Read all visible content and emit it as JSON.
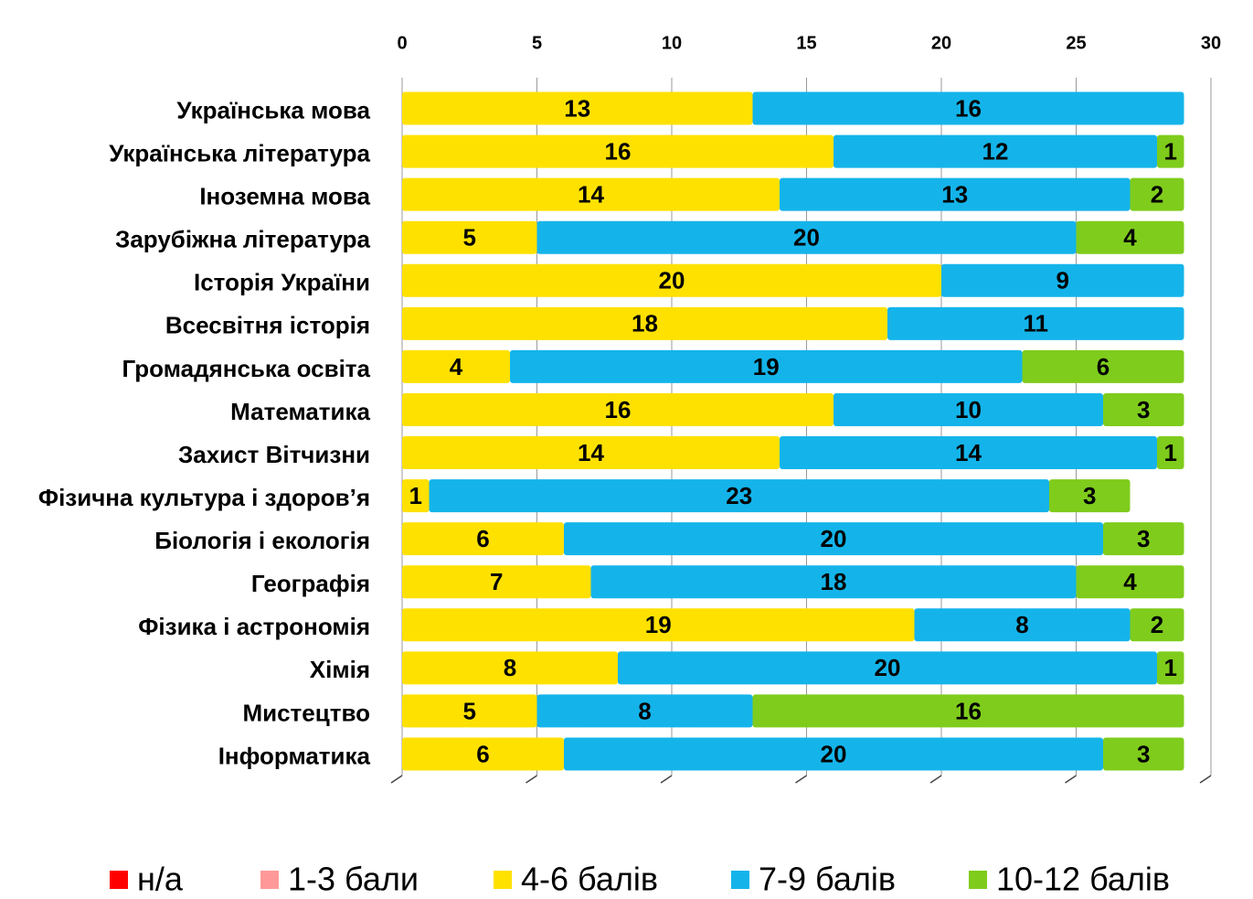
{
  "chart_data": {
    "type": "stacked_bar",
    "orientation": "horizontal",
    "categories": [
      "Українська мова",
      "Українська література",
      "Іноземна мова",
      "Зарубіжна література",
      "Історія України",
      "Всесвітня історія",
      "Громадянська освіта",
      "Математика",
      "Захист Вітчизни",
      "Фізична культура і здоров’я",
      "Біологія і екологія",
      "Географія",
      "Фізика і астрономія",
      "Хімія",
      "Мистецтво",
      "Інформатика"
    ],
    "series": [
      {
        "name": "н/а",
        "color": "#ff0000",
        "values": [
          null,
          null,
          null,
          null,
          null,
          null,
          null,
          null,
          null,
          null,
          null,
          null,
          null,
          null,
          null,
          null
        ]
      },
      {
        "name": "1-3 бали",
        "color": "#ff9999",
        "values": [
          null,
          null,
          null,
          null,
          null,
          null,
          null,
          null,
          null,
          null,
          null,
          null,
          null,
          null,
          null,
          null
        ]
      },
      {
        "name": "4-6 балів",
        "color": "#ffe100",
        "values": [
          13,
          16,
          14,
          5,
          20,
          18,
          4,
          16,
          14,
          1,
          6,
          7,
          19,
          8,
          5,
          6
        ]
      },
      {
        "name": "7-9 балів",
        "color": "#14b4ea",
        "values": [
          16,
          12,
          13,
          20,
          9,
          11,
          19,
          10,
          14,
          23,
          20,
          18,
          8,
          20,
          8,
          20
        ]
      },
      {
        "name": "10-12 балів",
        "color": "#7fcc1c",
        "values": [
          null,
          1,
          2,
          4,
          null,
          null,
          6,
          3,
          1,
          3,
          3,
          4,
          2,
          1,
          16,
          3
        ]
      }
    ],
    "xlim": [
      0,
      30
    ],
    "xticks": [
      0,
      5,
      10,
      15,
      20,
      25,
      30
    ],
    "legend": "bottom"
  }
}
